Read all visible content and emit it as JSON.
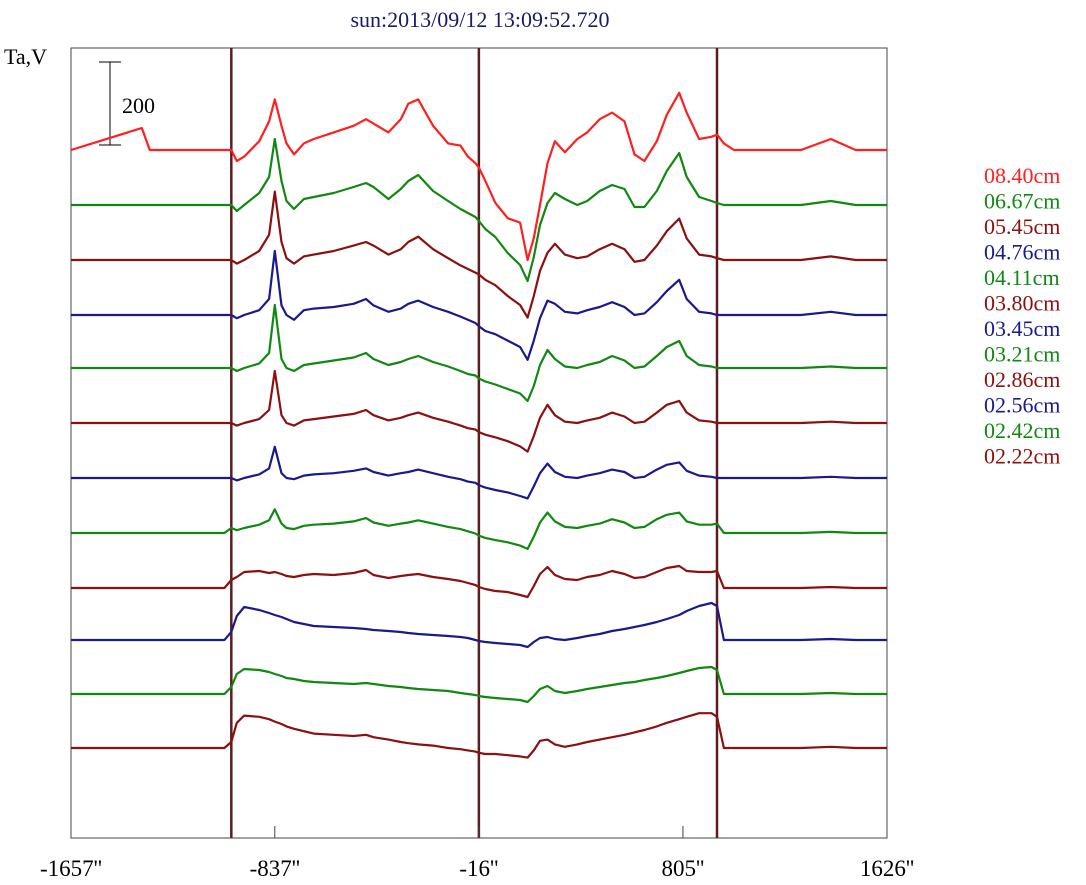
{
  "chart_data": {
    "type": "line",
    "title": "sun:2013/09/12 13:09:52.720",
    "ylabel": "Ta,V",
    "scale_bar_label": "200",
    "scale_bar_value": 200,
    "x_ticks": [
      -1657,
      -837,
      -16,
      805,
      1626
    ],
    "x_tick_labels": [
      "-1657''",
      "-837''",
      "-16''",
      "805''",
      "1626''"
    ],
    "xlim": [
      -1657,
      1626
    ],
    "vertical_markers": [
      -1012,
      -16,
      942
    ],
    "marker_color": "#5a1e1e",
    "legend_position": "right",
    "shape_x": [
      -1657,
      -1372,
      -1340,
      -1180,
      -1110,
      -1040,
      -1012,
      -990,
      -960,
      -900,
      -860,
      -837,
      -810,
      -790,
      -760,
      -720,
      -680,
      -600,
      -520,
      -470,
      -440,
      -380,
      -330,
      -300,
      -260,
      -200,
      -140,
      -90,
      -60,
      -30,
      -16,
      10,
      50,
      100,
      150,
      180,
      205,
      230,
      260,
      290,
      330,
      380,
      420,
      470,
      520,
      570,
      610,
      650,
      700,
      740,
      790,
      820,
      870,
      920,
      942,
      970,
      1010,
      1090,
      1200,
      1280,
      1400,
      1500,
      1626
    ],
    "series": [
      {
        "name": "08.40cm",
        "color": "#ff1f1f",
        "base": 150,
        "disk_offset": 0,
        "step_amp": 0,
        "shape_amp": 22,
        "shape": [
          0,
          1,
          0,
          0,
          0,
          0,
          0,
          -0.5,
          -0.3,
          0.4,
          1.3,
          2.3,
          1.1,
          0.3,
          -0.2,
          0.3,
          0.5,
          0.8,
          1.1,
          1.4,
          1.2,
          0.8,
          1.4,
          2.1,
          2.3,
          1.1,
          0.3,
          0.2,
          -0.3,
          -0.6,
          -0.8,
          -1.4,
          -2.4,
          -3.1,
          -3.3,
          -5.0,
          -4.0,
          -2.5,
          -0.6,
          0.4,
          -0.1,
          0.5,
          0.8,
          1.4,
          1.7,
          1.3,
          -0.2,
          -0.5,
          0.4,
          1.6,
          2.6,
          1.7,
          0.5,
          0.6,
          0.7,
          0.3,
          0,
          0,
          0,
          0,
          0.5,
          0,
          0
        ]
      },
      {
        "name": "06.67cm",
        "color": "#118811",
        "base": 205,
        "disk_offset": 0,
        "step_amp": 0,
        "shape_amp": 20,
        "shape": [
          0,
          0,
          0,
          0,
          0,
          0,
          0,
          -0.3,
          0,
          0.6,
          1.4,
          3.3,
          1.2,
          0.2,
          -0.2,
          0.3,
          0.4,
          0.6,
          0.9,
          1.1,
          0.9,
          0.3,
          0.8,
          1.2,
          1.5,
          0.7,
          0.2,
          -0.2,
          -0.4,
          -0.6,
          -0.8,
          -1.2,
          -1.6,
          -2.4,
          -3.0,
          -3.8,
          -2.6,
          -1.0,
          0.1,
          0.6,
          0.3,
          0.0,
          0.2,
          0.7,
          1.0,
          0.8,
          -0.1,
          -0.1,
          0.7,
          1.7,
          2.6,
          1.4,
          0.4,
          0.2,
          0.1,
          0,
          0,
          0,
          0,
          0,
          0.2,
          0,
          0
        ]
      },
      {
        "name": "05.45cm",
        "color": "#8b1010",
        "base": 260,
        "disk_offset": 0,
        "step_amp": 0,
        "shape_amp": 18,
        "shape": [
          0,
          0,
          0,
          0,
          0,
          0,
          0,
          -0.2,
          0,
          0.5,
          1.4,
          3.8,
          1.0,
          0.1,
          -0.2,
          0.2,
          0.3,
          0.5,
          0.8,
          1.0,
          0.8,
          0.3,
          0.6,
          1.0,
          1.3,
          0.6,
          0.1,
          -0.3,
          -0.5,
          -0.7,
          -0.8,
          -1.1,
          -1.4,
          -2.0,
          -2.5,
          -3.2,
          -2.0,
          -0.6,
          0.4,
          0.9,
          0.3,
          0.1,
          0.2,
          0.6,
          0.9,
          0.6,
          -0.1,
          0,
          0.8,
          1.6,
          2.3,
          1.2,
          0.3,
          0.2,
          0.1,
          0,
          0,
          0,
          0,
          0,
          0.2,
          0,
          0
        ]
      },
      {
        "name": "04.76cm",
        "color": "#1a1a8c",
        "base": 315,
        "disk_offset": 0,
        "step_amp": 0,
        "shape_amp": 16,
        "shape": [
          0,
          0,
          0,
          0,
          0,
          0,
          0,
          -0.2,
          0,
          0.3,
          1.0,
          4.0,
          0.6,
          0,
          -0.3,
          0.3,
          0.4,
          0.5,
          0.7,
          1.0,
          0.6,
          0.2,
          0.4,
          0.7,
          0.9,
          0.5,
          0.2,
          -0.1,
          -0.3,
          -0.5,
          -0.7,
          -1.0,
          -1.2,
          -1.6,
          -2.0,
          -2.8,
          -1.6,
          -0.2,
          0.9,
          0.7,
          0.2,
          0.1,
          0.3,
          0.5,
          0.8,
          0.5,
          0,
          0.1,
          0.8,
          1.5,
          2.2,
          1.0,
          0.2,
          0.1,
          0,
          0,
          0,
          0,
          0,
          0,
          0.2,
          0,
          0
        ]
      },
      {
        "name": "04.11cm",
        "color": "#118811",
        "base": 368,
        "disk_offset": 0,
        "step_amp": 0,
        "shape_amp": 15,
        "shape": [
          0,
          0,
          0,
          0,
          0,
          0,
          0,
          -0.2,
          0,
          0.3,
          1.0,
          4.2,
          0.6,
          0,
          -0.2,
          0.2,
          0.3,
          0.5,
          0.7,
          1.0,
          0.6,
          0.2,
          0.4,
          0.6,
          0.8,
          0.4,
          0.1,
          -0.2,
          -0.4,
          -0.5,
          -0.7,
          -0.9,
          -1.1,
          -1.4,
          -1.7,
          -2.2,
          -1.2,
          0.2,
          1.2,
          0.6,
          0.1,
          0,
          0.2,
          0.4,
          0.8,
          0.5,
          0,
          0.1,
          0.8,
          1.4,
          1.8,
          0.8,
          0.2,
          0.1,
          0,
          0,
          0,
          0,
          0,
          0,
          0.1,
          0,
          0
        ]
      },
      {
        "name": "03.80cm",
        "color": "#8b1010",
        "base": 423,
        "disk_offset": 0,
        "step_amp": 0,
        "shape_amp": 13,
        "shape": [
          0,
          0,
          0,
          0,
          0,
          0,
          0,
          -0.2,
          0,
          0.3,
          1.0,
          4.0,
          0.6,
          0,
          -0.2,
          0.2,
          0.3,
          0.5,
          0.7,
          1.0,
          0.6,
          0.2,
          0.4,
          0.6,
          0.8,
          0.4,
          0.1,
          -0.2,
          -0.4,
          -0.5,
          -0.7,
          -0.9,
          -1.1,
          -1.4,
          -1.8,
          -2.2,
          -1.0,
          0.4,
          1.4,
          0.6,
          0.1,
          0,
          0.2,
          0.4,
          0.8,
          0.5,
          0,
          0.1,
          0.8,
          1.4,
          1.7,
          0.8,
          0.2,
          0.1,
          0,
          0,
          0,
          0,
          0,
          0,
          0.1,
          0,
          0
        ]
      },
      {
        "name": "03.45cm",
        "color": "#1a1a8c",
        "base": 478,
        "disk_offset": 0,
        "step_amp": 0,
        "shape_amp": 12,
        "shape": [
          0,
          0,
          0,
          0,
          0,
          0,
          0,
          -0.2,
          0,
          0.3,
          0.8,
          2.6,
          0.4,
          0,
          -0.1,
          0.2,
          0.3,
          0.4,
          0.6,
          0.8,
          0.5,
          0.2,
          0.4,
          0.5,
          0.7,
          0.4,
          0.1,
          -0.1,
          -0.3,
          -0.4,
          -0.6,
          -0.8,
          -1.0,
          -1.2,
          -1.5,
          -1.7,
          -0.7,
          0.4,
          1.2,
          0.5,
          0.1,
          0,
          0.2,
          0.4,
          0.7,
          0.5,
          0,
          0.1,
          0.7,
          1.1,
          1.3,
          0.6,
          0.2,
          0.1,
          0,
          0,
          0,
          0,
          0,
          0,
          0.1,
          0,
          0
        ]
      },
      {
        "name": "03.21cm",
        "color": "#118811",
        "base": 533,
        "disk_offset": 5,
        "step_amp": 5,
        "shape_amp": 11,
        "shape": [
          0,
          0,
          0,
          0,
          0,
          0,
          0,
          -0.2,
          0,
          0.3,
          0.7,
          1.7,
          0.4,
          0,
          -0.1,
          0.2,
          0.3,
          0.4,
          0.6,
          0.9,
          0.5,
          0.2,
          0.4,
          0.5,
          0.7,
          0.4,
          0.1,
          -0.1,
          -0.3,
          -0.5,
          -0.7,
          -0.9,
          -1.1,
          -1.3,
          -1.6,
          -1.9,
          -0.8,
          0.5,
          1.4,
          0.6,
          0.1,
          0,
          0.2,
          0.4,
          0.8,
          0.5,
          0,
          0.1,
          0.8,
          1.2,
          1.4,
          0.6,
          0.3,
          0.3,
          0.4,
          0,
          0,
          0,
          0,
          0,
          0.1,
          0,
          0
        ]
      },
      {
        "name": "02.86cm",
        "color": "#8b1010",
        "base": 588,
        "disk_offset": 8,
        "step_amp": 8,
        "shape_amp": 10,
        "shape": [
          0,
          0,
          0,
          0,
          0,
          0,
          0,
          0.3,
          0.8,
          0.9,
          0.7,
          0.8,
          0.6,
          0.4,
          0.3,
          0.5,
          0.6,
          0.5,
          0.7,
          1.0,
          0.5,
          0.2,
          0.4,
          0.5,
          0.6,
          0.3,
          0.1,
          -0.1,
          -0.3,
          -0.5,
          -0.7,
          -0.9,
          -1.1,
          -1.2,
          -1.5,
          -1.7,
          -0.6,
          0.6,
          1.3,
          0.5,
          0.1,
          0,
          0.3,
          0.5,
          0.9,
          0.6,
          0.2,
          0.3,
          0.8,
          1.2,
          1.4,
          0.9,
          0.8,
          0.8,
          0.9,
          0,
          0,
          0,
          0,
          0,
          0.1,
          0,
          0
        ]
      },
      {
        "name": "02.56cm",
        "color": "#1a1a8c",
        "base": 640,
        "disk_offset": 8,
        "step_amp": 12,
        "shape_amp": 10,
        "shape": [
          0,
          0,
          0,
          0,
          0,
          0,
          0,
          1.6,
          2.5,
          2.2,
          1.9,
          1.7,
          1.5,
          1.3,
          1.0,
          0.8,
          0.6,
          0.5,
          0.4,
          0.3,
          0.2,
          0.1,
          0,
          -0.1,
          -0.2,
          -0.3,
          -0.4,
          -0.5,
          -0.6,
          -0.8,
          -0.9,
          -1.0,
          -1.1,
          -1.2,
          -1.3,
          -1.5,
          -1.0,
          -0.6,
          -0.5,
          -0.7,
          -0.8,
          -0.6,
          -0.4,
          -0.2,
          0.1,
          0.3,
          0.5,
          0.7,
          1.0,
          1.3,
          1.7,
          2.1,
          2.6,
          2.9,
          2.6,
          0,
          0,
          0,
          0,
          0,
          0.1,
          0,
          0
        ]
      },
      {
        "name": "02.42cm",
        "color": "#118811",
        "base": 694,
        "disk_offset": 7,
        "step_amp": 11,
        "shape_amp": 10,
        "shape": [
          0,
          0,
          0,
          0,
          0,
          0,
          0,
          1.3,
          1.8,
          1.7,
          1.5,
          1.3,
          1.1,
          0.9,
          0.8,
          0.6,
          0.5,
          0.4,
          0.3,
          0.4,
          0.3,
          0.1,
          0,
          -0.1,
          -0.2,
          -0.3,
          -0.4,
          -0.6,
          -0.7,
          -0.8,
          -0.9,
          -1.0,
          -1.1,
          -1.2,
          -1.3,
          -1.5,
          -0.9,
          -0.2,
          0.1,
          -0.4,
          -0.6,
          -0.4,
          -0.2,
          0,
          0.2,
          0.4,
          0.5,
          0.7,
          0.9,
          1.1,
          1.4,
          1.6,
          1.9,
          2.0,
          1.7,
          0,
          0,
          0,
          0,
          0,
          0.1,
          0,
          0
        ]
      },
      {
        "name": "02.22cm",
        "color": "#8b1010",
        "base": 748,
        "disk_offset": 6,
        "step_amp": 12,
        "shape_amp": 12,
        "shape": [
          0,
          0,
          0,
          0,
          0,
          0,
          0,
          1.6,
          2.2,
          2.1,
          1.9,
          1.7,
          1.5,
          1.3,
          1.1,
          0.9,
          0.7,
          0.6,
          0.5,
          0.6,
          0.4,
          0.2,
          0,
          -0.1,
          -0.2,
          -0.3,
          -0.5,
          -0.6,
          -0.7,
          -0.8,
          -0.9,
          -1.0,
          -1.0,
          -1.1,
          -1.2,
          -1.3,
          -0.7,
          0.1,
          0.2,
          -0.2,
          -0.4,
          -0.2,
          0,
          0.2,
          0.4,
          0.6,
          0.8,
          1.0,
          1.3,
          1.6,
          1.9,
          2.1,
          2.4,
          2.4,
          2.1,
          0,
          0,
          0,
          0,
          0,
          0.1,
          0,
          0
        ]
      }
    ]
  }
}
